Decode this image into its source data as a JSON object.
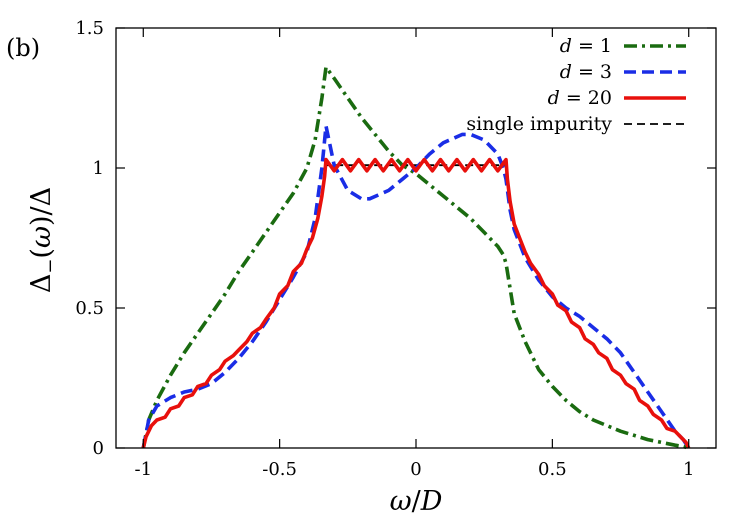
{
  "panel_label": "(b)",
  "chart_data": {
    "type": "line",
    "title": "",
    "xlabel": "ω/D",
    "ylabel": "Δ−(ω)/Δ",
    "xlim": [
      -1.1,
      1.1
    ],
    "ylim": [
      0,
      1.5
    ],
    "xticks": [
      -1,
      -0.5,
      0,
      0.5,
      1
    ],
    "xtick_labels": [
      "-1",
      "-0.5",
      "0",
      "0.5",
      "1"
    ],
    "yticks": [
      0,
      0.5,
      1,
      1.5
    ],
    "ytick_labels": [
      "0",
      "0.5",
      "1",
      "1.5"
    ],
    "grid": false,
    "legend_position": "top-right",
    "series": [
      {
        "name": "d = 1",
        "legend_math": {
          "var": "d",
          "value": "1"
        },
        "color": "#1a6b10",
        "style": "dashdot",
        "x": [
          -1.0,
          -0.98,
          -0.95,
          -0.9,
          -0.85,
          -0.8,
          -0.75,
          -0.7,
          -0.65,
          -0.6,
          -0.55,
          -0.5,
          -0.45,
          -0.4,
          -0.37,
          -0.345,
          -0.33,
          -0.3,
          -0.25,
          -0.2,
          -0.15,
          -0.1,
          -0.05,
          0.0,
          0.05,
          0.1,
          0.15,
          0.2,
          0.25,
          0.3,
          0.32,
          0.33,
          0.36,
          0.4,
          0.45,
          0.5,
          0.55,
          0.6,
          0.65,
          0.7,
          0.75,
          0.8,
          0.85,
          0.9,
          0.95,
          0.98,
          1.0
        ],
        "y": [
          0.0,
          0.1,
          0.17,
          0.26,
          0.34,
          0.41,
          0.48,
          0.55,
          0.63,
          0.7,
          0.77,
          0.84,
          0.91,
          1.0,
          1.1,
          1.25,
          1.36,
          1.32,
          1.25,
          1.18,
          1.12,
          1.06,
          1.01,
          0.98,
          0.94,
          0.9,
          0.86,
          0.82,
          0.77,
          0.72,
          0.69,
          0.66,
          0.48,
          0.38,
          0.28,
          0.22,
          0.17,
          0.13,
          0.1,
          0.08,
          0.06,
          0.045,
          0.03,
          0.02,
          0.01,
          0.005,
          0.0
        ]
      },
      {
        "name": "d = 3",
        "legend_math": {
          "var": "d",
          "value": "3"
        },
        "color": "#1a2de6",
        "style": "dashed",
        "x": [
          -1.0,
          -0.98,
          -0.95,
          -0.9,
          -0.85,
          -0.8,
          -0.75,
          -0.7,
          -0.65,
          -0.6,
          -0.55,
          -0.5,
          -0.45,
          -0.4,
          -0.37,
          -0.345,
          -0.33,
          -0.3,
          -0.25,
          -0.2,
          -0.17,
          -0.1,
          -0.05,
          0.0,
          0.05,
          0.1,
          0.17,
          0.2,
          0.25,
          0.3,
          0.32,
          0.33,
          0.345,
          0.36,
          0.4,
          0.45,
          0.5,
          0.55,
          0.6,
          0.65,
          0.7,
          0.75,
          0.8,
          0.85,
          0.9,
          0.95,
          0.98,
          1.0
        ],
        "y": [
          0.0,
          0.1,
          0.15,
          0.18,
          0.2,
          0.21,
          0.23,
          0.27,
          0.32,
          0.38,
          0.45,
          0.53,
          0.61,
          0.7,
          0.82,
          1.0,
          1.15,
          1.01,
          0.92,
          0.89,
          0.89,
          0.92,
          0.96,
          1.0,
          1.05,
          1.09,
          1.12,
          1.12,
          1.1,
          1.05,
          1.0,
          0.96,
          0.85,
          0.78,
          0.68,
          0.6,
          0.54,
          0.5,
          0.47,
          0.43,
          0.39,
          0.34,
          0.27,
          0.2,
          0.13,
          0.06,
          0.03,
          0.0
        ]
      },
      {
        "name": "d = 20",
        "legend_math": {
          "var": "d",
          "value": "20"
        },
        "color": "#e8100c",
        "style": "solid",
        "x": [
          -1.0,
          -0.99,
          -0.97,
          -0.95,
          -0.92,
          -0.9,
          -0.87,
          -0.85,
          -0.82,
          -0.8,
          -0.77,
          -0.75,
          -0.72,
          -0.7,
          -0.67,
          -0.65,
          -0.62,
          -0.6,
          -0.57,
          -0.55,
          -0.52,
          -0.5,
          -0.47,
          -0.45,
          -0.42,
          -0.4,
          -0.38,
          -0.36,
          -0.345,
          -0.335,
          -0.33,
          -0.3,
          -0.27,
          -0.24,
          -0.21,
          -0.18,
          -0.15,
          -0.12,
          -0.09,
          -0.06,
          -0.03,
          0.0,
          0.03,
          0.06,
          0.09,
          0.12,
          0.15,
          0.18,
          0.21,
          0.24,
          0.27,
          0.3,
          0.33,
          0.335,
          0.345,
          0.36,
          0.38,
          0.4,
          0.42,
          0.45,
          0.47,
          0.5,
          0.52,
          0.55,
          0.57,
          0.6,
          0.62,
          0.65,
          0.67,
          0.7,
          0.72,
          0.75,
          0.77,
          0.8,
          0.82,
          0.85,
          0.87,
          0.9,
          0.92,
          0.95,
          0.97,
          0.99,
          1.0
        ],
        "y": [
          0.0,
          0.04,
          0.08,
          0.1,
          0.11,
          0.14,
          0.15,
          0.18,
          0.19,
          0.22,
          0.23,
          0.26,
          0.28,
          0.31,
          0.33,
          0.35,
          0.38,
          0.41,
          0.43,
          0.46,
          0.5,
          0.55,
          0.58,
          0.63,
          0.66,
          0.71,
          0.75,
          0.82,
          0.9,
          0.97,
          1.03,
          0.99,
          1.03,
          0.99,
          1.03,
          0.99,
          1.03,
          0.99,
          1.03,
          0.99,
          1.03,
          0.99,
          1.03,
          0.99,
          1.03,
          0.99,
          1.03,
          0.99,
          1.03,
          0.99,
          1.03,
          0.99,
          1.03,
          0.96,
          0.88,
          0.8,
          0.75,
          0.7,
          0.66,
          0.62,
          0.58,
          0.55,
          0.51,
          0.49,
          0.45,
          0.43,
          0.39,
          0.37,
          0.34,
          0.32,
          0.28,
          0.26,
          0.23,
          0.21,
          0.17,
          0.15,
          0.12,
          0.1,
          0.07,
          0.06,
          0.04,
          0.02,
          0.0
        ]
      },
      {
        "name": "single impurity",
        "color": "#000000",
        "style": "dashed",
        "x": [
          -1.0,
          -0.99,
          -0.97,
          -0.95,
          -0.92,
          -0.9,
          -0.87,
          -0.85,
          -0.82,
          -0.8,
          -0.77,
          -0.75,
          -0.72,
          -0.7,
          -0.67,
          -0.65,
          -0.62,
          -0.6,
          -0.57,
          -0.55,
          -0.52,
          -0.5,
          -0.47,
          -0.45,
          -0.42,
          -0.4,
          -0.38,
          -0.36,
          -0.345,
          -0.335,
          -0.33,
          0.0,
          0.33,
          0.335,
          0.345,
          0.36,
          0.38,
          0.4,
          0.42,
          0.45,
          0.47,
          0.5,
          0.52,
          0.55,
          0.57,
          0.6,
          0.62,
          0.65,
          0.67,
          0.7,
          0.72,
          0.75,
          0.77,
          0.8,
          0.82,
          0.85,
          0.87,
          0.9,
          0.92,
          0.95,
          0.97,
          0.99,
          1.0
        ],
        "y": [
          0.0,
          0.04,
          0.08,
          0.1,
          0.11,
          0.14,
          0.15,
          0.18,
          0.19,
          0.22,
          0.23,
          0.26,
          0.28,
          0.31,
          0.33,
          0.35,
          0.38,
          0.41,
          0.43,
          0.46,
          0.5,
          0.55,
          0.58,
          0.63,
          0.66,
          0.71,
          0.75,
          0.82,
          0.9,
          0.97,
          1.01,
          1.01,
          1.01,
          0.96,
          0.88,
          0.8,
          0.75,
          0.7,
          0.66,
          0.62,
          0.58,
          0.55,
          0.51,
          0.49,
          0.45,
          0.43,
          0.39,
          0.37,
          0.34,
          0.32,
          0.28,
          0.26,
          0.23,
          0.21,
          0.17,
          0.15,
          0.12,
          0.1,
          0.07,
          0.06,
          0.04,
          0.02,
          0.0
        ]
      }
    ]
  }
}
